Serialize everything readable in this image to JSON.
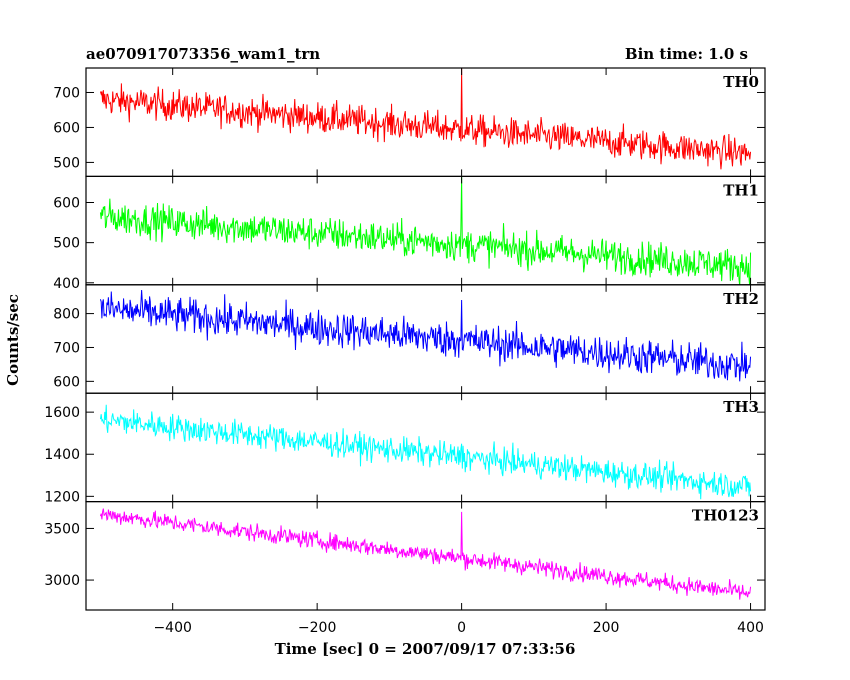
{
  "chart_data": {
    "type": "line",
    "title": "ae070917073356_wam1_trn",
    "subtitle": "Bin time: 1.0 s",
    "xlabel": "Time [sec] 0 = 2007/09/17 07:33:56",
    "ylabel": "Counts/sec",
    "xlim": [
      -520,
      420
    ],
    "x_ticks": [
      -400,
      -200,
      0,
      200,
      400
    ],
    "x_range": [
      -500,
      400
    ],
    "peak_x": 0,
    "grid": false,
    "panels": [
      {
        "name": "TH0",
        "color": "#ff0000",
        "ylim": [
          460,
          770
        ],
        "y_ticks": [
          500,
          600,
          700
        ],
        "start_value": 680,
        "end_value": 525,
        "noise": 32,
        "peak_value": 770
      },
      {
        "name": "TH1",
        "color": "#00ff00",
        "ylim": [
          395,
          665
        ],
        "y_ticks": [
          400,
          500,
          600
        ],
        "start_value": 565,
        "end_value": 440,
        "noise": 30,
        "peak_value": 665
      },
      {
        "name": "TH2",
        "color": "#0000ff",
        "ylim": [
          565,
          885
        ],
        "y_ticks": [
          600,
          700,
          800
        ],
        "start_value": 815,
        "end_value": 645,
        "noise": 38,
        "peak_value": 840
      },
      {
        "name": "TH3",
        "color": "#00ffff",
        "ylim": [
          1175,
          1690
        ],
        "y_ticks": [
          1200,
          1400,
          1600
        ],
        "start_value": 1565,
        "end_value": 1245,
        "noise": 45,
        "peak_value": 1450
      },
      {
        "name": "TH0123",
        "color": "#ff00ff",
        "ylim": [
          2710,
          3760
        ],
        "y_ticks": [
          3000,
          3500
        ],
        "start_value": 3640,
        "end_value": 2870,
        "noise": 60,
        "peak_value": 3660
      }
    ]
  }
}
